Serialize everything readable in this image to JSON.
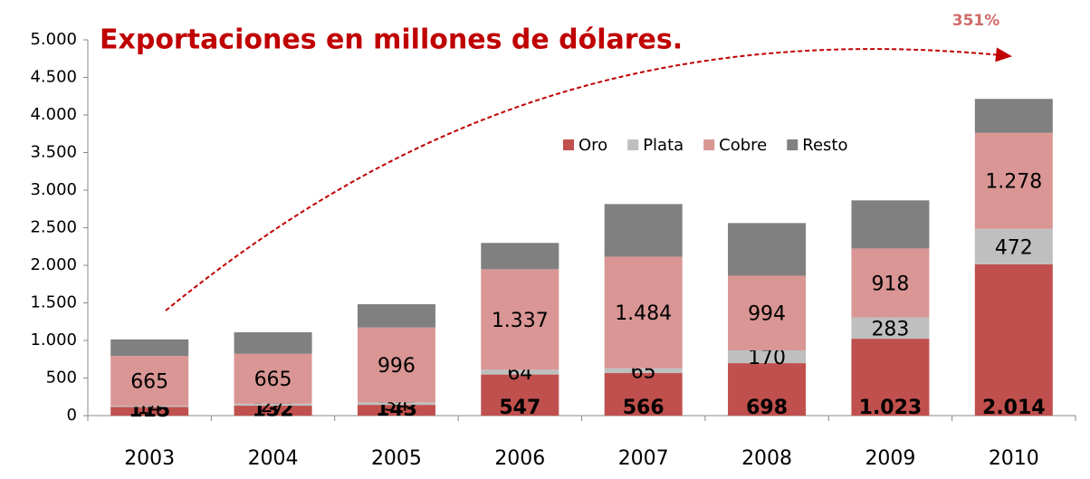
{
  "chart_data": {
    "type": "stacked_bar",
    "title": "Exportaciones en millones de dólares.",
    "annotation": "351%",
    "categories": [
      "2003",
      "2004",
      "2005",
      "2006",
      "2007",
      "2008",
      "2009",
      "2010"
    ],
    "series": [
      {
        "name": "Oro",
        "color": "#c0504d",
        "values": [
          115,
          132,
          143,
          547,
          566,
          698,
          1023,
          2014
        ],
        "value_labels": [
          "115",
          "132",
          "143",
          "547",
          "566",
          "698",
          "1.023",
          "2.014"
        ]
      },
      {
        "name": "Plata",
        "color": "#bfbfbf",
        "values": [
          14,
          27,
          34,
          64,
          65,
          170,
          283,
          472
        ]
      },
      {
        "name": "Cobre",
        "color": "#d99694",
        "values": [
          665,
          665,
          996,
          1337,
          1484,
          994,
          918,
          1278
        ],
        "value_labels": [
          "665",
          "665",
          "996",
          "1.337",
          "1.484",
          "994",
          "918",
          "1.278"
        ]
      },
      {
        "name": "Resto",
        "color": "#808080",
        "values": [
          220,
          285,
          310,
          350,
          700,
          700,
          640,
          450
        ]
      }
    ],
    "ylim": [
      0,
      5000
    ],
    "yticks": [
      0,
      500,
      {
        "value": 1000,
        "label": "1.000"
      },
      {
        "value": 1500,
        "label": "1.500"
      },
      {
        "value": 2000,
        "label": "2.000"
      },
      {
        "value": 2500,
        "label": "2.500"
      },
      {
        "value": 3000,
        "label": "3.000"
      },
      {
        "value": 3500,
        "label": "3.500"
      },
      {
        "value": 4000,
        "label": "4.000"
      },
      {
        "value": 4500,
        "label": "4.500"
      },
      {
        "value": 5000,
        "label": "5.000"
      }
    ],
    "legend": "top"
  }
}
